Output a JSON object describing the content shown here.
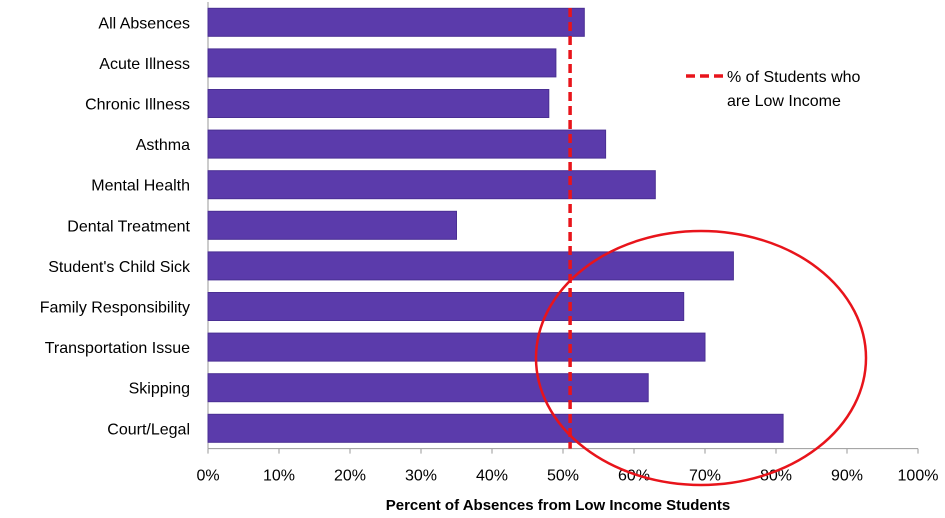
{
  "chart_data": {
    "type": "bar",
    "orientation": "horizontal",
    "categories": [
      "All Absences",
      "Acute Illness",
      "Chronic Illness",
      "Asthma",
      "Mental Health",
      "Dental Treatment",
      "Student's Child Sick",
      "Family Responsibility",
      "Transportation Issue",
      "Skipping",
      "Court/Legal"
    ],
    "values": [
      53,
      49,
      48,
      56,
      63,
      35,
      74,
      67,
      70,
      62,
      81
    ],
    "xlabel": "Percent of Absences from Low Income Students",
    "xlim": [
      0,
      100
    ],
    "x_ticks": [
      "0%",
      "10%",
      "20%",
      "30%",
      "40%",
      "50%",
      "60%",
      "70%",
      "80%",
      "90%",
      "100%"
    ],
    "reference_line": {
      "value": 51,
      "label_line1": "% of Students who",
      "label_line2": "are Low Income"
    },
    "highlighted_categories": [
      "Student's Child Sick",
      "Family Responsibility",
      "Transportation Issue",
      "Skipping",
      "Court/Legal"
    ],
    "legend_placement": "top-right",
    "grid": false,
    "colors": {
      "bar": "#5b3bab",
      "bar_stroke": "#4a2f93",
      "reference_line": "#e8141b",
      "highlight_ellipse": "#e8141b",
      "axis": "#9a9a9a"
    }
  }
}
